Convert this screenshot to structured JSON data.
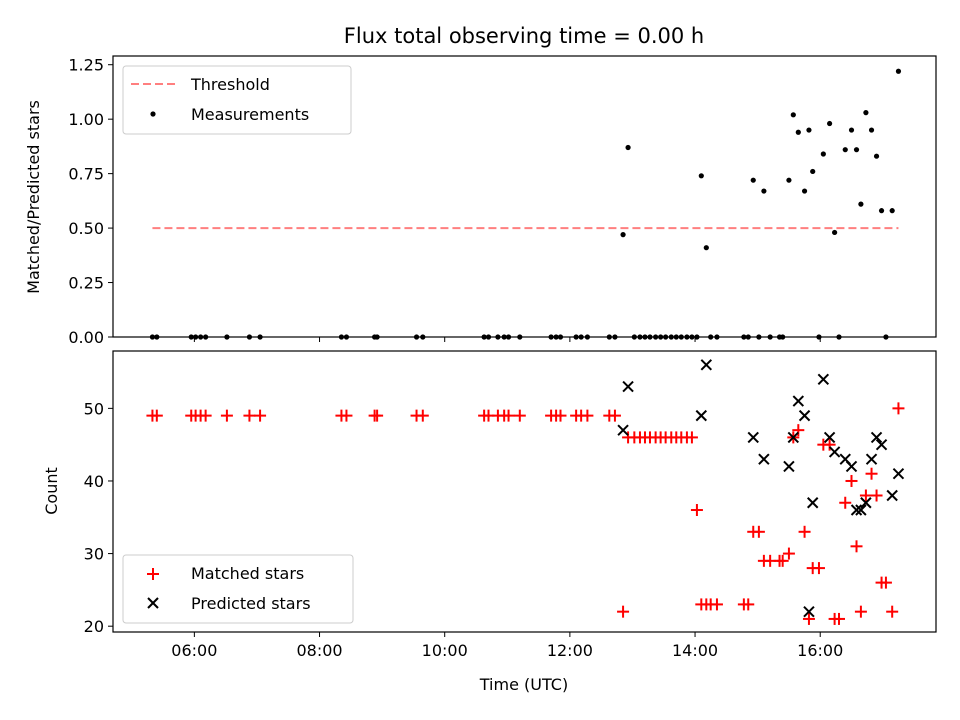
{
  "chart_data": [
    {
      "type": "scatter",
      "title": "Flux total observing time = 0.00 h",
      "xlabel": "",
      "ylabel": "Matched/Predicted stars",
      "xlim": [
        4.7,
        17.85
      ],
      "ylim": [
        0,
        1.29
      ],
      "yticks": [
        0,
        0.25,
        0.5,
        0.75,
        1.0,
        1.25
      ],
      "ytick_labels": [
        "0.00",
        "0.25",
        "0.50",
        "0.75",
        "1.00",
        "1.25"
      ],
      "grid": false,
      "legend": "upper-left",
      "threshold": {
        "name": "Threshold",
        "value": 0.5,
        "x": [
          5.33,
          17.25
        ],
        "color": "#ff7f7f"
      },
      "series": [
        {
          "name": "Measurements",
          "color": "#000000",
          "x": [
            5.33,
            5.4,
            5.95,
            6.02,
            6.1,
            6.18,
            6.52,
            6.88,
            7.05,
            8.35,
            8.43,
            8.88,
            8.92,
            9.55,
            9.65,
            10.63,
            10.7,
            10.85,
            10.95,
            11.02,
            11.2,
            11.7,
            11.78,
            11.85,
            12.1,
            12.18,
            12.28,
            12.63,
            12.72,
            12.85,
            12.93,
            13.03,
            13.12,
            13.2,
            13.28,
            13.37,
            13.45,
            13.53,
            13.62,
            13.7,
            13.78,
            13.87,
            13.95,
            14.03,
            14.1,
            14.18,
            14.25,
            14.35,
            14.78,
            14.85,
            14.93,
            15.02,
            15.1,
            15.2,
            15.35,
            15.4,
            15.5,
            15.57,
            15.65,
            15.75,
            15.82,
            15.88,
            15.98,
            16.05,
            16.15,
            16.23,
            16.3,
            16.4,
            16.5,
            16.58,
            16.65,
            16.73,
            16.82,
            16.9,
            16.98,
            17.05,
            17.15,
            17.25
          ],
          "y": [
            0,
            0,
            0,
            0,
            0,
            0,
            0,
            0,
            0,
            0,
            0,
            0,
            0,
            0,
            0,
            0,
            0,
            0,
            0,
            0,
            0,
            0,
            0,
            0,
            0,
            0,
            0,
            0,
            0,
            0.47,
            0.87,
            0,
            0,
            0,
            0,
            0,
            0,
            0,
            0,
            0,
            0,
            0,
            0,
            0,
            0.74,
            0.41,
            0,
            0,
            0,
            0,
            0.72,
            0,
            0.67,
            0,
            0,
            0,
            0.72,
            1.02,
            0.94,
            0.67,
            0.95,
            0.76,
            0,
            0.84,
            0.98,
            0.48,
            0,
            0.86,
            0.95,
            0.86,
            0.61,
            1.03,
            0.95,
            0.83,
            0.58,
            0,
            0.58,
            1.22
          ]
        }
      ],
      "xticks": [
        6,
        8,
        10,
        12,
        14,
        16
      ],
      "xtick_labels": [
        "06:00",
        "08:00",
        "10:00",
        "12:00",
        "14:00",
        "16:00"
      ]
    },
    {
      "type": "scatter",
      "title": "",
      "xlabel": "Time (UTC)",
      "ylabel": "Count",
      "xlim": [
        4.7,
        17.85
      ],
      "ylim": [
        19.2,
        57.9
      ],
      "yticks": [
        20,
        30,
        40,
        50
      ],
      "ytick_labels": [
        "20",
        "30",
        "40",
        "50"
      ],
      "xticks": [
        6,
        8,
        10,
        12,
        14,
        16
      ],
      "xtick_labels": [
        "06:00",
        "08:00",
        "10:00",
        "12:00",
        "14:00",
        "16:00"
      ],
      "grid": false,
      "legend": "lower-left",
      "series": [
        {
          "name": "Matched stars",
          "color": "#ff0000",
          "marker": "plus",
          "x": [
            5.33,
            5.4,
            5.95,
            6.02,
            6.1,
            6.18,
            6.52,
            6.88,
            7.05,
            8.35,
            8.43,
            8.88,
            8.92,
            9.55,
            9.65,
            10.63,
            10.7,
            10.85,
            10.95,
            11.02,
            11.2,
            11.7,
            11.78,
            11.85,
            12.1,
            12.18,
            12.28,
            12.63,
            12.72,
            12.85,
            12.93,
            13.03,
            13.12,
            13.2,
            13.28,
            13.37,
            13.45,
            13.53,
            13.62,
            13.7,
            13.78,
            13.87,
            13.95,
            14.03,
            14.1,
            14.18,
            14.25,
            14.35,
            14.78,
            14.85,
            14.93,
            15.02,
            15.1,
            15.2,
            15.35,
            15.4,
            15.5,
            15.57,
            15.65,
            15.75,
            15.82,
            15.88,
            15.98,
            16.05,
            16.15,
            16.23,
            16.3,
            16.4,
            16.5,
            16.58,
            16.65,
            16.73,
            16.82,
            16.9,
            16.98,
            17.05,
            17.15,
            17.25
          ],
          "y": [
            49,
            49,
            49,
            49,
            49,
            49,
            49,
            49,
            49,
            49,
            49,
            49,
            49,
            49,
            49,
            49,
            49,
            49,
            49,
            49,
            49,
            49,
            49,
            49,
            49,
            49,
            49,
            49,
            49,
            22,
            46,
            46,
            46,
            46,
            46,
            46,
            46,
            46,
            46,
            46,
            46,
            46,
            46,
            36,
            23,
            23,
            23,
            23,
            23,
            23,
            33,
            33,
            29,
            29,
            29,
            29,
            30,
            46,
            47,
            33,
            21,
            28,
            28,
            45,
            45,
            21,
            21,
            37,
            40,
            31,
            22,
            38,
            41,
            38,
            26,
            26,
            22,
            50
          ]
        },
        {
          "name": "Predicted stars",
          "color": "#000000",
          "marker": "x",
          "x": [
            12.85,
            12.93,
            14.1,
            14.18,
            14.93,
            15.1,
            15.5,
            15.57,
            15.65,
            15.75,
            15.82,
            15.88,
            16.05,
            16.15,
            16.23,
            16.4,
            16.5,
            16.58,
            16.65,
            16.73,
            16.82,
            16.9,
            16.98,
            17.15,
            17.25
          ],
          "y": [
            47,
            53,
            49,
            56,
            46,
            43,
            42,
            46,
            51,
            49,
            22,
            37,
            54,
            46,
            44,
            43,
            42,
            36,
            36,
            37,
            43,
            46,
            45,
            38,
            41
          ]
        }
      ]
    }
  ]
}
